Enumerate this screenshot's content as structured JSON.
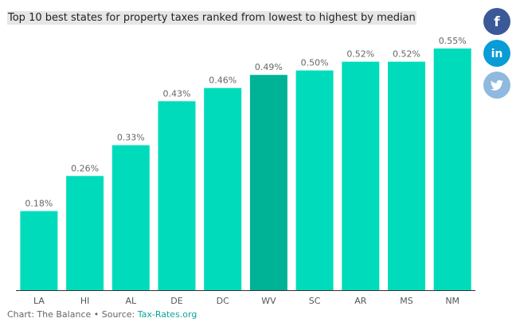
{
  "chart_data": {
    "type": "bar",
    "title": "Top 10 best states for property taxes ranked from lowest to highest by median",
    "categories": [
      "LA",
      "HI",
      "AL",
      "DE",
      "DC",
      "WV",
      "SC",
      "AR",
      "MS",
      "NM"
    ],
    "values": [
      0.18,
      0.26,
      0.33,
      0.43,
      0.46,
      0.49,
      0.5,
      0.52,
      0.52,
      0.55
    ],
    "value_labels": [
      "0.18%",
      "0.26%",
      "0.33%",
      "0.43%",
      "0.46%",
      "0.49%",
      "0.50%",
      "0.52%",
      "0.52%",
      "0.55%"
    ],
    "ylim": [
      0,
      0.55
    ],
    "highlight_category": "WV",
    "colors": {
      "bar": "#00dcbb",
      "bar_highlight": "#00b396",
      "value_label": "#666666",
      "tick_label": "#555555",
      "axis": "#333333"
    }
  },
  "source": {
    "prefix": "Chart: The Balance • Source: ",
    "link_text": "Tax-Rates.org"
  },
  "share": {
    "facebook": {
      "glyph": "f",
      "color": "#3b5998"
    },
    "linkedin": {
      "glyph": "in",
      "color": "#0a9cd6"
    },
    "twitter": {
      "color": "#8fb9de"
    }
  }
}
